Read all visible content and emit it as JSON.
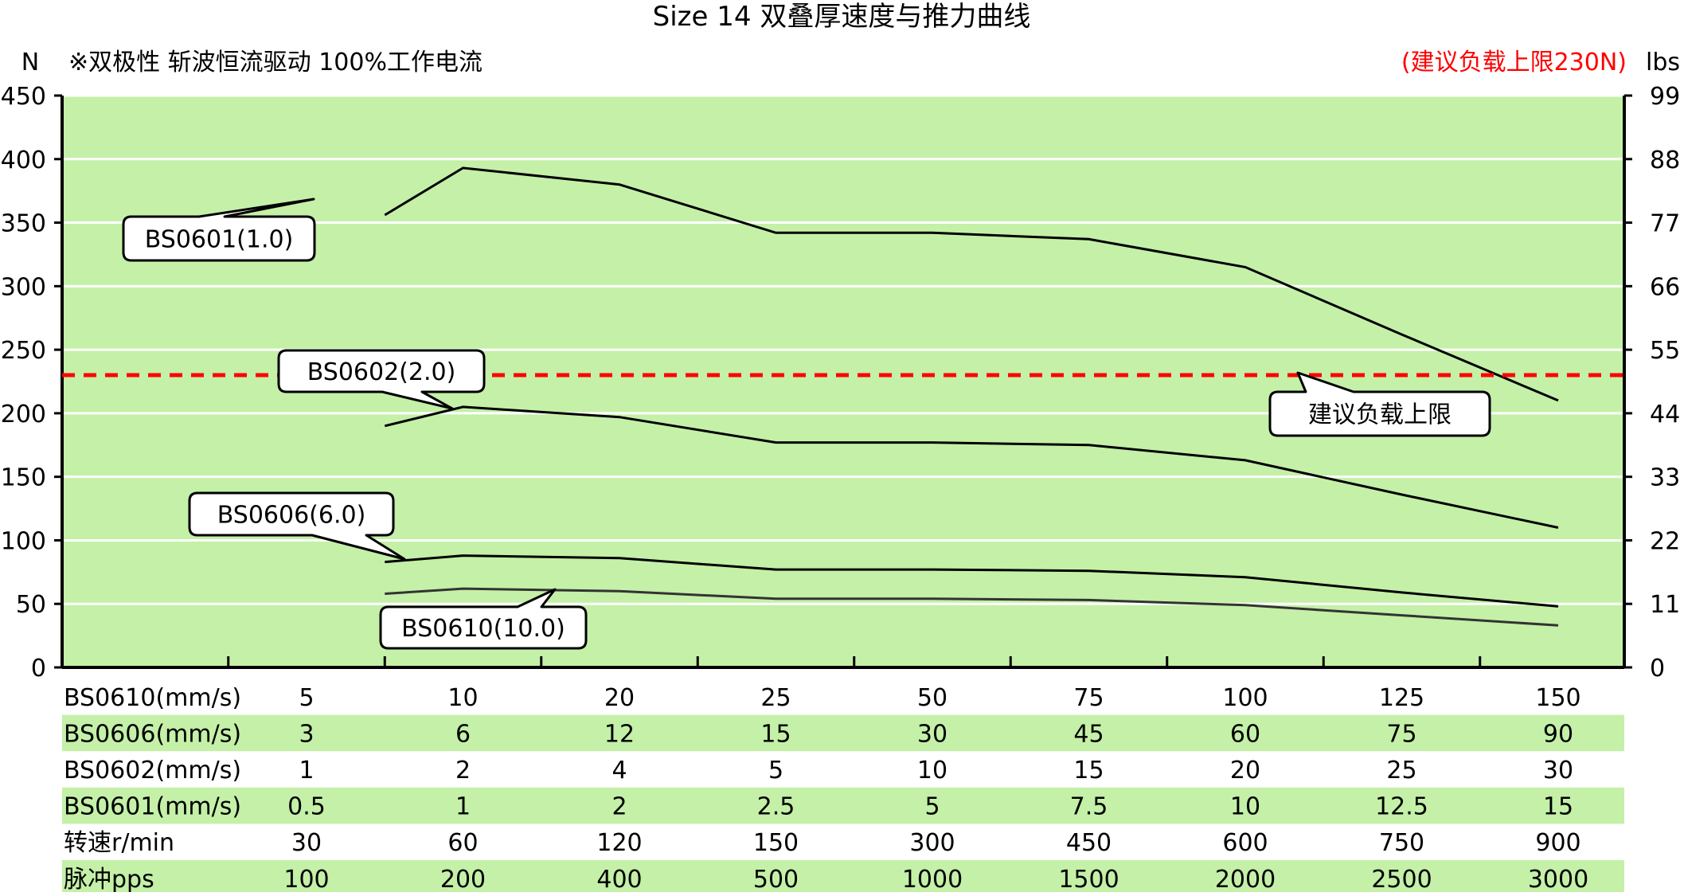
{
  "header": {
    "title": "Size 14 双叠厚速度与推力曲线",
    "subtitle": "※双极性 斩波恒流驱动 100%工作电流",
    "load_note": "(建议负载上限230N)",
    "left_unit": "N",
    "right_unit": "lbs"
  },
  "colors": {
    "plot_bg": "#c4f0a8",
    "row_band": "#c4f0a8",
    "limit_line": "#ff0000",
    "curve": "#000000",
    "note_text": "#ff0000"
  },
  "chart_data": {
    "type": "line",
    "x": [
      5,
      10,
      20,
      25,
      50,
      75,
      100,
      125,
      150
    ],
    "x_unit_label": "BS0610(mm/s)",
    "ylim": [
      0,
      450
    ],
    "yticks": [
      0,
      50,
      100,
      150,
      200,
      250,
      300,
      350,
      400,
      450
    ],
    "y2ticks": [
      "0",
      "11",
      "22",
      "33",
      "44",
      "55",
      "66",
      "77",
      "88",
      "99"
    ],
    "grid": true,
    "limit_value": 230,
    "series": [
      {
        "name": "BS0601(1.0)",
        "x": [
          1.5,
          2,
          3,
          4,
          5,
          6,
          7,
          8,
          9
        ],
        "values": [
          356,
          393,
          380,
          342,
          342,
          337,
          315,
          262,
          210
        ]
      },
      {
        "name": "BS0602(2.0)",
        "x": [
          1.5,
          2,
          3,
          4,
          5,
          6,
          7,
          8,
          9
        ],
        "values": [
          190,
          205,
          197,
          177,
          177,
          175,
          163,
          136,
          110
        ]
      },
      {
        "name": "BS0606(6.0)",
        "x": [
          1.5,
          2,
          3,
          4,
          5,
          6,
          7,
          8,
          9
        ],
        "values": [
          83,
          88,
          86,
          77,
          77,
          76,
          71,
          59,
          48
        ]
      },
      {
        "name": "BS0610(10.0)",
        "x": [
          1.5,
          2,
          3,
          4,
          5,
          6,
          7,
          8,
          9
        ],
        "values": [
          58,
          62,
          60,
          54,
          54,
          53,
          49,
          41,
          33
        ]
      }
    ],
    "callouts": [
      {
        "text": "BS0601(1.0)",
        "series": 0
      },
      {
        "text": "BS0602(2.0)",
        "series": 1
      },
      {
        "text": "BS0606(6.0)",
        "series": 2
      },
      {
        "text": "BS0610(10.0)",
        "series": 3
      },
      {
        "text": "建议负载上限",
        "series": "limit"
      }
    ],
    "table": [
      {
        "label": "BS0610(mm/s)",
        "cells": [
          "5",
          "10",
          "20",
          "25",
          "50",
          "75",
          "100",
          "125",
          "150"
        ]
      },
      {
        "label": "BS0606(mm/s)",
        "cells": [
          "3",
          "6",
          "12",
          "15",
          "30",
          "45",
          "60",
          "75",
          "90"
        ]
      },
      {
        "label": "BS0602(mm/s)",
        "cells": [
          "1",
          "2",
          "4",
          "5",
          "10",
          "15",
          "20",
          "25",
          "30"
        ]
      },
      {
        "label": "BS0601(mm/s)",
        "cells": [
          "0.5",
          "1",
          "2",
          "2.5",
          "5",
          "7.5",
          "10",
          "12.5",
          "15"
        ]
      },
      {
        "label": "转速r/min",
        "cells": [
          "30",
          "60",
          "120",
          "150",
          "300",
          "450",
          "600",
          "750",
          "900"
        ]
      },
      {
        "label": "脉冲pps",
        "cells": [
          "100",
          "200",
          "400",
          "500",
          "1000",
          "1500",
          "2000",
          "2500",
          "3000"
        ]
      }
    ]
  }
}
